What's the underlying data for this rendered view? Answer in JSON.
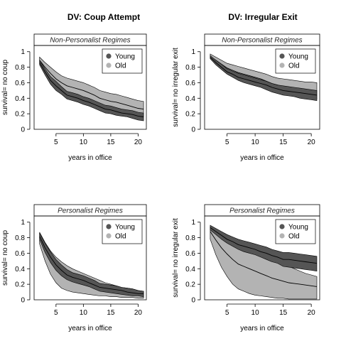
{
  "column_titles": [
    "DV: Coup Attempt",
    "DV: Irregular Exit"
  ],
  "colors": {
    "young_band": "#555555",
    "old_band": "#b3b3b3",
    "line": "#000000",
    "strip_bg": "#ffffff",
    "frame": "#000000"
  },
  "chart_data": [
    {
      "type": "area",
      "panel": "coup-nonpersonalist",
      "strip_label": "Non-Personalist Regimes",
      "xlabel": "years in office",
      "ylabel": "survival= no coup",
      "xlim": [
        1,
        21.5
      ],
      "ylim": [
        0,
        1.08
      ],
      "xticks": [
        5,
        10,
        15,
        20
      ],
      "yticks": [
        0,
        0.2,
        0.4,
        0.6,
        0.8,
        1
      ],
      "ytick_labels": [
        "0",
        "0.2",
        "0.4",
        "0.6",
        "0.8",
        "1"
      ],
      "legend": {
        "position": "top-right",
        "entries": [
          "Young",
          "Old"
        ]
      },
      "x": [
        2,
        3,
        4,
        5,
        6,
        7,
        8,
        9,
        10,
        11,
        12,
        13,
        14,
        15,
        16,
        17,
        18,
        19,
        20,
        21
      ],
      "series": [
        {
          "name": "Old",
          "mean": [
            0.89,
            0.8,
            0.72,
            0.65,
            0.6,
            0.56,
            0.54,
            0.52,
            0.5,
            0.47,
            0.44,
            0.4,
            0.38,
            0.36,
            0.35,
            0.33,
            0.31,
            0.29,
            0.27,
            0.26
          ],
          "lower": [
            0.85,
            0.74,
            0.65,
            0.57,
            0.52,
            0.47,
            0.45,
            0.43,
            0.41,
            0.38,
            0.35,
            0.31,
            0.29,
            0.27,
            0.26,
            0.24,
            0.22,
            0.2,
            0.18,
            0.17
          ],
          "upper": [
            0.93,
            0.86,
            0.8,
            0.74,
            0.69,
            0.66,
            0.64,
            0.62,
            0.6,
            0.57,
            0.54,
            0.5,
            0.48,
            0.46,
            0.45,
            0.43,
            0.41,
            0.39,
            0.37,
            0.36
          ]
        },
        {
          "name": "Young",
          "mean": [
            0.86,
            0.74,
            0.63,
            0.56,
            0.5,
            0.44,
            0.42,
            0.4,
            0.37,
            0.35,
            0.32,
            0.29,
            0.26,
            0.25,
            0.23,
            0.21,
            0.2,
            0.19,
            0.17,
            0.16
          ],
          "lower": [
            0.83,
            0.7,
            0.58,
            0.5,
            0.45,
            0.39,
            0.37,
            0.35,
            0.32,
            0.3,
            0.27,
            0.24,
            0.21,
            0.2,
            0.18,
            0.17,
            0.16,
            0.14,
            0.12,
            0.11
          ],
          "upper": [
            0.89,
            0.78,
            0.68,
            0.62,
            0.55,
            0.49,
            0.47,
            0.45,
            0.42,
            0.4,
            0.37,
            0.34,
            0.31,
            0.3,
            0.28,
            0.26,
            0.25,
            0.24,
            0.22,
            0.21
          ]
        }
      ]
    },
    {
      "type": "area",
      "panel": "exit-nonpersonalist",
      "strip_label": "Non-Personalist Regimes",
      "xlabel": "years in office",
      "ylabel": "survival= no irregular exit",
      "xlim": [
        1,
        21.5
      ],
      "ylim": [
        0,
        1.08
      ],
      "xticks": [
        5,
        10,
        15,
        20
      ],
      "yticks": [
        0,
        0.2,
        0.4,
        0.6,
        0.8,
        1
      ],
      "ytick_labels": [
        "0",
        "0.2",
        "0.4",
        "0.6",
        "0.8",
        "1"
      ],
      "legend": {
        "position": "top-right",
        "entries": [
          "Young",
          "Old"
        ]
      },
      "x": [
        2,
        3,
        4,
        5,
        6,
        7,
        8,
        9,
        10,
        11,
        12,
        13,
        14,
        15,
        16,
        17,
        18,
        19,
        20,
        21
      ],
      "series": [
        {
          "name": "Old",
          "mean": [
            0.94,
            0.89,
            0.84,
            0.79,
            0.76,
            0.73,
            0.71,
            0.69,
            0.67,
            0.65,
            0.62,
            0.59,
            0.57,
            0.55,
            0.54,
            0.53,
            0.52,
            0.51,
            0.5,
            0.49
          ],
          "lower": [
            0.92,
            0.85,
            0.79,
            0.73,
            0.69,
            0.66,
            0.63,
            0.61,
            0.59,
            0.57,
            0.54,
            0.51,
            0.49,
            0.46,
            0.45,
            0.44,
            0.42,
            0.41,
            0.4,
            0.39
          ],
          "upper": [
            0.97,
            0.93,
            0.89,
            0.85,
            0.83,
            0.81,
            0.79,
            0.77,
            0.75,
            0.73,
            0.71,
            0.68,
            0.66,
            0.65,
            0.64,
            0.63,
            0.62,
            0.61,
            0.61,
            0.6
          ]
        },
        {
          "name": "Young",
          "mean": [
            0.93,
            0.86,
            0.8,
            0.74,
            0.71,
            0.67,
            0.65,
            0.63,
            0.61,
            0.59,
            0.57,
            0.54,
            0.52,
            0.5,
            0.49,
            0.48,
            0.47,
            0.46,
            0.45,
            0.44
          ],
          "lower": [
            0.91,
            0.83,
            0.77,
            0.71,
            0.67,
            0.63,
            0.6,
            0.58,
            0.56,
            0.54,
            0.51,
            0.48,
            0.46,
            0.44,
            0.43,
            0.42,
            0.4,
            0.39,
            0.38,
            0.37
          ],
          "upper": [
            0.95,
            0.89,
            0.84,
            0.78,
            0.75,
            0.72,
            0.7,
            0.68,
            0.66,
            0.64,
            0.62,
            0.59,
            0.57,
            0.56,
            0.55,
            0.54,
            0.53,
            0.52,
            0.51,
            0.5
          ]
        }
      ]
    },
    {
      "type": "area",
      "panel": "coup-personalist",
      "strip_label": "Personalist Regimes",
      "xlabel": "years in office",
      "ylabel": "survival= no coup",
      "xlim": [
        1,
        21.5
      ],
      "ylim": [
        0,
        1.08
      ],
      "xticks": [
        5,
        10,
        15,
        20
      ],
      "yticks": [
        0,
        0.2,
        0.4,
        0.6,
        0.8,
        1
      ],
      "ytick_labels": [
        "0",
        "0.2",
        "0.4",
        "0.6",
        "0.8",
        "1"
      ],
      "legend": {
        "position": "top-right",
        "entries": [
          "Young",
          "Old"
        ]
      },
      "x": [
        2,
        3,
        4,
        5,
        6,
        7,
        8,
        9,
        10,
        11,
        12,
        13,
        14,
        15,
        16,
        17,
        18,
        19,
        20,
        21
      ],
      "series": [
        {
          "name": "Old",
          "mean": [
            0.8,
            0.63,
            0.5,
            0.4,
            0.33,
            0.27,
            0.24,
            0.22,
            0.2,
            0.18,
            0.16,
            0.13,
            0.12,
            0.11,
            0.1,
            0.09,
            0.08,
            0.07,
            0.06,
            0.06
          ],
          "lower": [
            0.72,
            0.5,
            0.33,
            0.22,
            0.15,
            0.12,
            0.1,
            0.09,
            0.08,
            0.07,
            0.06,
            0.05,
            0.05,
            0.04,
            0.04,
            0.03,
            0.03,
            0.03,
            0.02,
            0.02
          ],
          "upper": [
            0.87,
            0.74,
            0.63,
            0.55,
            0.49,
            0.44,
            0.4,
            0.37,
            0.34,
            0.31,
            0.28,
            0.25,
            0.22,
            0.2,
            0.18,
            0.16,
            0.15,
            0.14,
            0.12,
            0.11
          ]
        },
        {
          "name": "Young",
          "mean": [
            0.82,
            0.67,
            0.55,
            0.45,
            0.38,
            0.32,
            0.29,
            0.27,
            0.25,
            0.22,
            0.19,
            0.16,
            0.15,
            0.14,
            0.13,
            0.12,
            0.1,
            0.09,
            0.08,
            0.08
          ],
          "lower": [
            0.78,
            0.61,
            0.48,
            0.38,
            0.31,
            0.26,
            0.23,
            0.21,
            0.19,
            0.17,
            0.14,
            0.11,
            0.1,
            0.09,
            0.08,
            0.07,
            0.06,
            0.05,
            0.05,
            0.04
          ],
          "upper": [
            0.86,
            0.73,
            0.62,
            0.52,
            0.45,
            0.39,
            0.35,
            0.33,
            0.31,
            0.28,
            0.25,
            0.21,
            0.2,
            0.19,
            0.18,
            0.16,
            0.15,
            0.14,
            0.12,
            0.11
          ]
        }
      ]
    },
    {
      "type": "area",
      "panel": "exit-personalist",
      "strip_label": "Personalist Regimes",
      "xlabel": "years in office",
      "ylabel": "survival= no irregular exit",
      "xlim": [
        1,
        21.5
      ],
      "ylim": [
        0,
        1.08
      ],
      "xticks": [
        5,
        10,
        15,
        20
      ],
      "yticks": [
        0,
        0.2,
        0.4,
        0.6,
        0.8,
        1
      ],
      "ytick_labels": [
        "0",
        "0.2",
        "0.4",
        "0.6",
        "0.8",
        "1"
      ],
      "legend": {
        "position": "top-right",
        "entries": [
          "Young",
          "Old"
        ]
      },
      "x": [
        2,
        3,
        4,
        5,
        6,
        7,
        8,
        9,
        10,
        11,
        12,
        13,
        14,
        15,
        16,
        17,
        18,
        19,
        20,
        21
      ],
      "series": [
        {
          "name": "Old",
          "mean": [
            0.88,
            0.77,
            0.67,
            0.59,
            0.52,
            0.46,
            0.43,
            0.4,
            0.37,
            0.34,
            0.31,
            0.28,
            0.26,
            0.24,
            0.22,
            0.21,
            0.2,
            0.19,
            0.18,
            0.17
          ],
          "lower": [
            0.78,
            0.58,
            0.42,
            0.3,
            0.2,
            0.14,
            0.11,
            0.08,
            0.06,
            0.05,
            0.04,
            0.03,
            0.02,
            0.02,
            0.01,
            0.01,
            0.01,
            0.01,
            0.01,
            0.01
          ],
          "upper": [
            0.94,
            0.89,
            0.84,
            0.8,
            0.76,
            0.72,
            0.69,
            0.66,
            0.63,
            0.6,
            0.57,
            0.53,
            0.5,
            0.46,
            0.43,
            0.4,
            0.37,
            0.34,
            0.32,
            0.3
          ]
        },
        {
          "name": "Young",
          "mean": [
            0.93,
            0.88,
            0.83,
            0.78,
            0.75,
            0.71,
            0.69,
            0.67,
            0.65,
            0.62,
            0.6,
            0.57,
            0.55,
            0.52,
            0.52,
            0.51,
            0.5,
            0.49,
            0.48,
            0.47
          ],
          "lower": [
            0.9,
            0.84,
            0.78,
            0.73,
            0.69,
            0.65,
            0.62,
            0.6,
            0.58,
            0.55,
            0.52,
            0.49,
            0.47,
            0.43,
            0.42,
            0.41,
            0.4,
            0.39,
            0.38,
            0.37
          ],
          "upper": [
            0.96,
            0.92,
            0.88,
            0.84,
            0.81,
            0.78,
            0.76,
            0.74,
            0.72,
            0.7,
            0.68,
            0.65,
            0.63,
            0.61,
            0.61,
            0.6,
            0.59,
            0.58,
            0.57,
            0.56
          ]
        }
      ]
    }
  ]
}
